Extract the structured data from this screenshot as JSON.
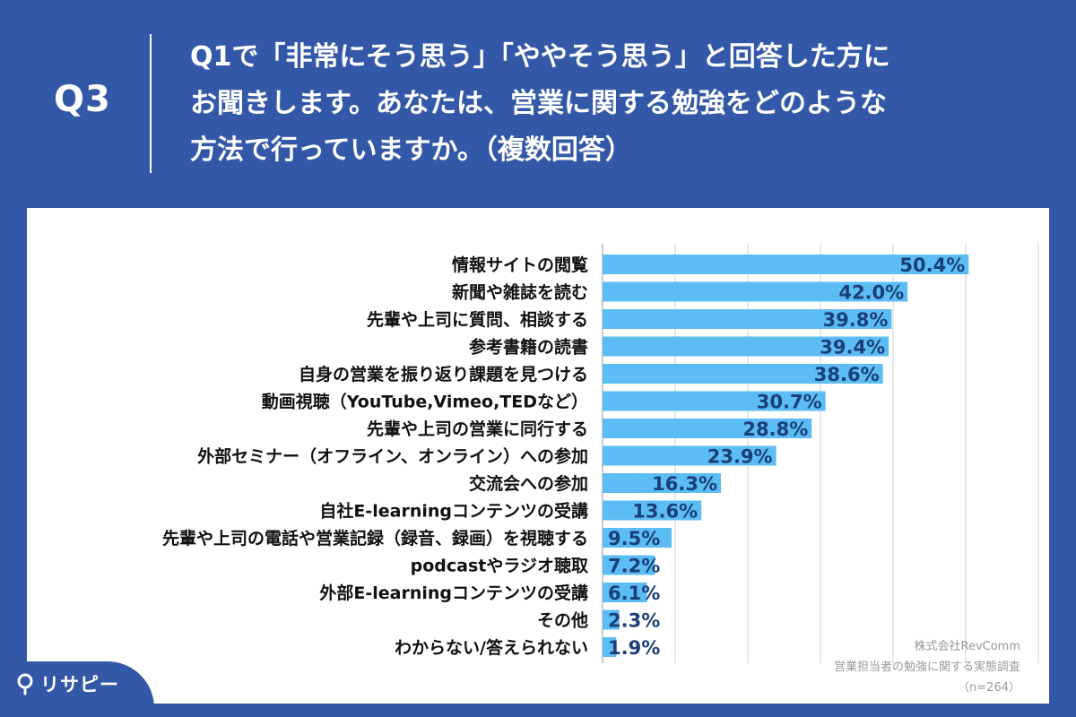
{
  "header": {
    "q_number": "Q3",
    "question_lines": [
      "Q1で「非常にそう思う」「ややそう思う」と回答した方に",
      "お聞きします。あなたは、営業に関する勉強をどのような",
      "方法で行っていますか。（複数回答）"
    ]
  },
  "chart_data": {
    "type": "bar",
    "orientation": "horizontal",
    "categories": [
      "情報サイトの閲覧",
      "新聞や雑誌を読む",
      "先輩や上司に質問、相談する",
      "参考書籍の読書",
      "自身の営業を振り返り課題を見つける",
      "動画視聴（YouTube,Vimeo,TEDなど）",
      "先輩や上司の営業に同行する",
      "外部セミナー（オフライン、オンライン）への参加",
      "交流会への参加",
      "自社E-learningコンテンツの受講",
      "先輩や上司の電話や営業記録（録音、録画）を視聴する",
      "podcastやラジオ聴取",
      "外部E-learningコンテンツの受講",
      "その他",
      "わからない/答えられない"
    ],
    "values": [
      50.4,
      42.0,
      39.8,
      39.4,
      38.6,
      30.7,
      28.8,
      23.9,
      16.3,
      13.6,
      9.5,
      7.2,
      6.1,
      2.3,
      1.9
    ],
    "value_labels": [
      "50.4%",
      "42.0%",
      "39.8%",
      "39.4%",
      "38.6%",
      "30.7%",
      "28.8%",
      "23.9%",
      "16.3%",
      "13.6%",
      "9.5%",
      "7.2%",
      "6.1%",
      "2.3%",
      "1.9%"
    ],
    "xlim": [
      0,
      60
    ],
    "grid": true,
    "bar_color": "#5cbcf4",
    "label_color": "#1b3f78"
  },
  "source": {
    "company": "株式会社RevComm",
    "survey": "営業担当者の勉強に関する実態調査",
    "n": "（n=264）"
  },
  "logo": {
    "text": "リサピー",
    "icon": "pin-icon"
  },
  "colors": {
    "background": "#3358a8",
    "panel": "#ffffff",
    "text_dark": "#111111"
  }
}
